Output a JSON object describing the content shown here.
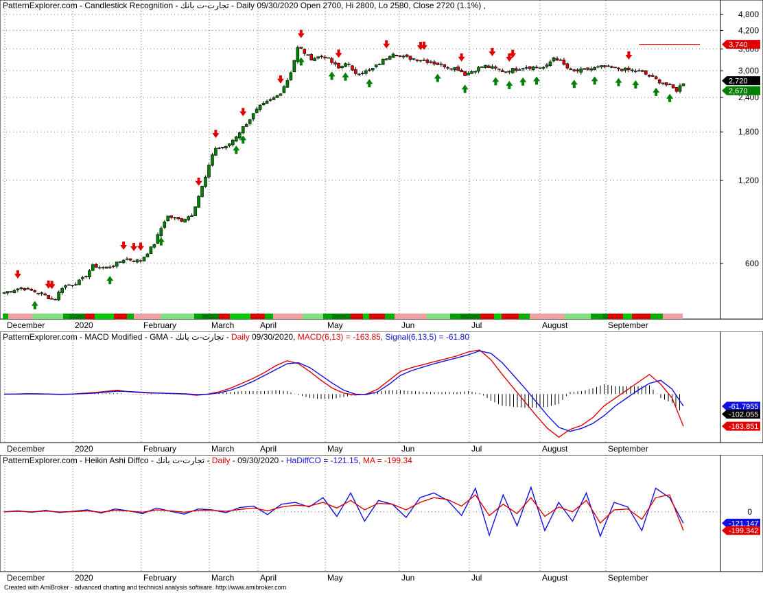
{
  "colors": {
    "background": "#ffffff",
    "grid": "#9a9a9a",
    "up_candle": "#008000",
    "down_candle": "#e00000",
    "up_arrow": "#008000",
    "down_arrow": "#e00000",
    "macd": "#e00000",
    "signal": "#1010e0",
    "hadiff": "#1010e0",
    "ma": "#e00000",
    "histogram": "#000000"
  },
  "months": [
    "December",
    "2020",
    "February",
    "March",
    "April",
    "May",
    "Jun",
    "Jul",
    "August",
    "September"
  ],
  "footer": "Created with AmiBroker - advanced charting and technical analysis software. http://www.amibroker.com",
  "chart_data": [
    {
      "type": "candlestick",
      "title_parts": [
        {
          "text": "PatternExplorer.com - Candlestick Recognition - تجارت-ت بانك - Daily 09/30/2020 Open 2700, Hi 2800, Lo 2580, Close 2720 (1.1%) ,",
          "color": "#000000"
        }
      ],
      "y_scale": "log",
      "ylim": [
        420,
        5000
      ],
      "y_ticks": [
        {
          "label": "4,800",
          "value": 4800
        },
        {
          "label": "4,200",
          "value": 4200
        },
        {
          "label": "3,600",
          "value": 3600
        },
        {
          "label": "3,000",
          "value": 3000
        },
        {
          "label": "2,400",
          "value": 2400
        },
        {
          "label": "1,800",
          "value": 1800
        },
        {
          "label": "1,200",
          "value": 1200
        },
        {
          "label": "600",
          "value": 600
        }
      ],
      "markers": [
        {
          "label": "3,740",
          "value": 3740,
          "bg": "#e00000",
          "fg": "#ffffff"
        },
        {
          "label": "2,720",
          "value": 2760,
          "bg": "#000000",
          "fg": "#ffffff"
        },
        {
          "label": "2,670",
          "value": 2540,
          "bg": "#008000",
          "fg": "#ffffff"
        }
      ],
      "resistance_line": {
        "value": 3740,
        "from_index": 186,
        "to_index": 198
      },
      "anchors": [
        [
          0,
          470
        ],
        [
          10,
          490
        ],
        [
          22,
          465
        ],
        [
          29,
          440
        ],
        [
          34,
          495
        ],
        [
          40,
          505
        ],
        [
          45,
          520
        ],
        [
          52,
          590
        ],
        [
          58,
          575
        ],
        [
          66,
          600
        ],
        [
          70,
          625
        ],
        [
          79,
          610
        ],
        [
          87,
          700
        ],
        [
          93,
          850
        ],
        [
          95,
          890
        ],
        [
          103,
          860
        ],
        [
          109,
          900
        ],
        [
          118,
          1270
        ],
        [
          122,
          1570
        ],
        [
          129,
          1580
        ],
        [
          134,
          1710
        ],
        [
          148,
          2200
        ],
        [
          160,
          2460
        ],
        [
          166,
          2870
        ],
        [
          171,
          3680
        ],
        [
          178,
          3320
        ],
        [
          186,
          3400
        ],
        [
          195,
          3040
        ],
        [
          199,
          3250
        ],
        [
          203,
          2940
        ],
        [
          213,
          3000
        ],
        [
          226,
          3500
        ],
        [
          231,
          3370
        ],
        [
          244,
          3280
        ],
        [
          253,
          3160
        ],
        [
          264,
          3050
        ],
        [
          268,
          2910
        ],
        [
          279,
          3130
        ],
        [
          291,
          2980
        ],
        [
          303,
          3100
        ],
        [
          315,
          3080
        ],
        [
          320,
          3380
        ],
        [
          330,
          2970
        ],
        [
          348,
          3100
        ],
        [
          370,
          2980
        ],
        [
          391,
          2550
        ],
        [
          395,
          2720
        ]
      ],
      "candles_count": 200,
      "up_arrows": [
        9,
        40,
        82,
        118,
        128,
        160,
        167,
        178,
        187,
        230,
        250,
        260,
        267,
        275,
        299,
        320,
        342,
        360,
        376,
        398,
        412,
        421,
        450,
        470,
        498,
        519
      ],
      "down_arrows": [
        10,
        25,
        28,
        75,
        79,
        95,
        135,
        162,
        161,
        167,
        200,
        222,
        291,
        310,
        321,
        325,
        345,
        363,
        372,
        373
      ]
    },
    {
      "type": "line",
      "title_parts": [
        {
          "text": "PatternExplorer.com - MACD Modified  - GMA - تجارت-ت بانك - ",
          "color": "#000000"
        },
        {
          "text": "Daily",
          "color": "#e00000"
        },
        {
          "text": " 09/30/2020, ",
          "color": "#000000"
        },
        {
          "text": "MACD(6,13) = -163.85",
          "color": "#e00000"
        },
        {
          "text": ", ",
          "color": "#000000"
        },
        {
          "text": "Signal(6,13,5) = -61.80",
          "color": "#1010e0"
        }
      ],
      "ylim": [
        -230,
        260
      ],
      "series": [
        {
          "name": "MACD(6,13)",
          "color": "#e00000",
          "values": [
            0,
            0,
            2,
            1,
            0,
            -2,
            0,
            4,
            8,
            14,
            20,
            12,
            8,
            5,
            4,
            2,
            0,
            -6,
            0,
            12,
            30,
            55,
            80,
            110,
            145,
            170,
            155,
            115,
            70,
            30,
            5,
            -5,
            0,
            25,
            70,
            115,
            135,
            150,
            165,
            180,
            195,
            215,
            225,
            175,
            100,
            30,
            -40,
            -110,
            -175,
            -220,
            -180,
            -160,
            -120,
            -60,
            -20,
            20,
            60,
            100,
            50,
            -20,
            -163.85
          ]
        },
        {
          "name": "Signal(6,13,5)",
          "color": "#1010e0",
          "values": [
            0,
            0,
            1,
            1,
            0,
            -1,
            0,
            2,
            5,
            10,
            15,
            13,
            10,
            7,
            5,
            3,
            1,
            -3,
            -1,
            6,
            20,
            40,
            65,
            95,
            125,
            155,
            160,
            135,
            95,
            55,
            20,
            0,
            -3,
            12,
            50,
            95,
            120,
            138,
            155,
            170,
            185,
            200,
            220,
            208,
            160,
            95,
            30,
            -40,
            -110,
            -170,
            -190,
            -175,
            -150,
            -110,
            -60,
            -20,
            20,
            55,
            70,
            25,
            -61.8
          ]
        }
      ],
      "histogram": [
        0,
        0,
        1,
        0,
        0,
        -1,
        0,
        2,
        3,
        4,
        5,
        -1,
        -2,
        -2,
        -1,
        -1,
        -1,
        -3,
        1,
        6,
        10,
        15,
        15,
        15,
        20,
        15,
        -5,
        -20,
        -25,
        -25,
        -15,
        -5,
        3,
        13,
        20,
        20,
        15,
        12,
        10,
        10,
        10,
        15,
        5,
        -33,
        -60,
        -65,
        -70,
        -70,
        -65,
        -50,
        10,
        15,
        30,
        50,
        40,
        40,
        40,
        45,
        -20,
        -45,
        -102
      ],
      "markers": [
        {
          "label": "-61.7955",
          "value": -61.8,
          "bg": "#1010e0",
          "fg": "#ffffff"
        },
        {
          "label": "-102.055",
          "value": -102.055,
          "bg": "#000000",
          "fg": "#ffffff"
        },
        {
          "label": "-163.851",
          "value": -163.85,
          "bg": "#e00000",
          "fg": "#ffffff"
        }
      ]
    },
    {
      "type": "line",
      "title_parts": [
        {
          "text": "PatternExplorer.com - Heikin Ashi Diffco - تجارت-ت بانك - ",
          "color": "#000000"
        },
        {
          "text": "Daily",
          "color": "#e00000"
        },
        {
          "text": "  - 09/30/2020 - ",
          "color": "#000000"
        },
        {
          "text": "HaDiffCO = -121.15",
          "color": "#1010e0"
        },
        {
          "text": ", ",
          "color": "#000000"
        },
        {
          "text": "MA = -199.34",
          "color": "#e00000"
        }
      ],
      "ylim": [
        -600,
        480
      ],
      "y_ticks": [
        {
          "label": "0",
          "value": 0
        }
      ],
      "series": [
        {
          "name": "HaDiffCO",
          "color": "#1010e0",
          "values": [
            0,
            10,
            -5,
            15,
            -10,
            5,
            20,
            -15,
            30,
            10,
            -20,
            40,
            5,
            -25,
            30,
            20,
            -10,
            45,
            60,
            -30,
            80,
            100,
            50,
            150,
            -50,
            200,
            -100,
            120,
            80,
            -60,
            150,
            200,
            120,
            -40,
            250,
            -250,
            180,
            -150,
            260,
            -200,
            100,
            -100,
            200,
            -260,
            100,
            50,
            -200,
            250,
            150,
            -121.15
          ]
        },
        {
          "name": "MA",
          "color": "#e00000",
          "values": [
            0,
            5,
            0,
            8,
            -2,
            2,
            10,
            -5,
            15,
            8,
            -5,
            20,
            10,
            -5,
            15,
            15,
            5,
            25,
            40,
            10,
            50,
            70,
            60,
            100,
            40,
            120,
            20,
            90,
            80,
            20,
            100,
            150,
            130,
            60,
            180,
            -40,
            80,
            -20,
            150,
            -50,
            50,
            0,
            120,
            -120,
            20,
            30,
            -80,
            150,
            180,
            -199.34
          ]
        }
      ],
      "markers": [
        {
          "label": "-121.147",
          "value": -121.15,
          "bg": "#1010e0",
          "fg": "#ffffff"
        },
        {
          "label": "-199.342",
          "value": -199.34,
          "bg": "#e00000",
          "fg": "#ffffff"
        }
      ]
    }
  ]
}
